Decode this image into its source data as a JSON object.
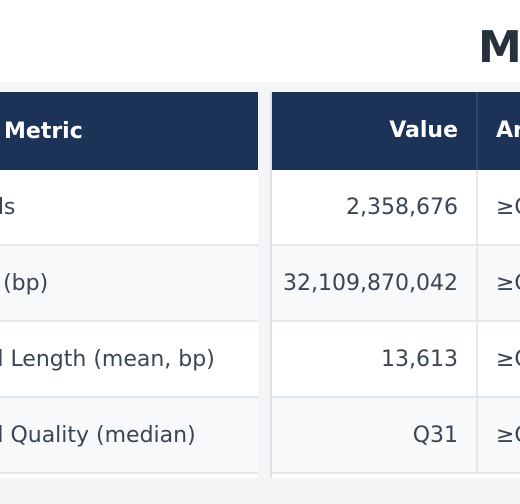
{
  "page": {
    "title": "M"
  },
  "table": {
    "headers": {
      "metric": "Metric",
      "value": "Value",
      "assessment": "Ar"
    },
    "rows": [
      {
        "metric": "nds",
        "value": "2,358,676",
        "assessment": "≥C"
      },
      {
        "metric": "ld (bp)",
        "value": "32,109,870,042",
        "assessment": "≥C"
      },
      {
        "metric": "ad Length (mean, bp)",
        "value": "13,613",
        "assessment": "≥C"
      },
      {
        "metric": "ad Quality (median)",
        "value": "Q31",
        "assessment": "≥C"
      }
    ]
  },
  "colors": {
    "header_bg": "#1d3257",
    "page_bg": "#f3f5f7",
    "text": "#3a4653"
  }
}
